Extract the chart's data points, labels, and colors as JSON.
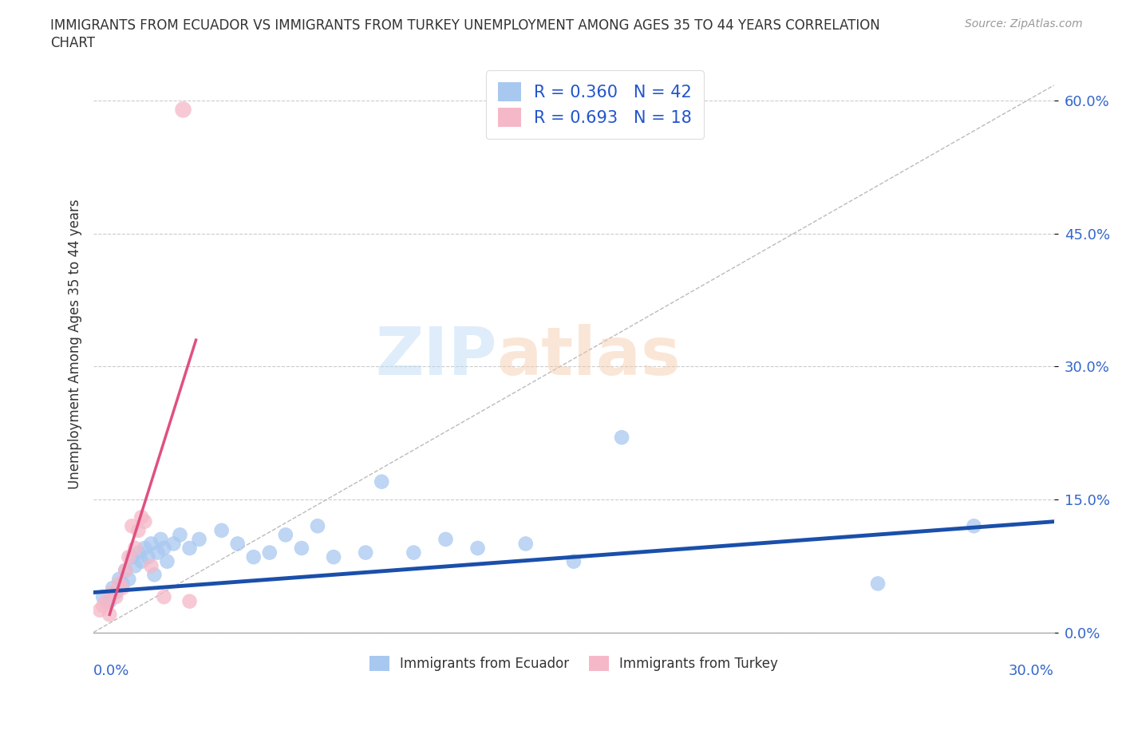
{
  "title_line1": "IMMIGRANTS FROM ECUADOR VS IMMIGRANTS FROM TURKEY UNEMPLOYMENT AMONG AGES 35 TO 44 YEARS CORRELATION",
  "title_line2": "CHART",
  "source": "Source: ZipAtlas.com",
  "ylabel": "Unemployment Among Ages 35 to 44 years",
  "ytick_values": [
    0.0,
    15.0,
    30.0,
    45.0,
    60.0
  ],
  "xmin": 0.0,
  "xmax": 30.0,
  "ymin": 0.0,
  "ymax": 65.0,
  "R_ecuador": 0.36,
  "N_ecuador": 42,
  "R_turkey": 0.693,
  "N_turkey": 18,
  "ecuador_color": "#a8c8f0",
  "turkey_color": "#f5b8c8",
  "ecuador_line_color": "#1a4faa",
  "turkey_line_color": "#e05080",
  "grid_color": "#cccccc",
  "ecuador_x": [
    0.3,
    0.5,
    0.6,
    0.7,
    0.8,
    0.9,
    1.0,
    1.1,
    1.2,
    1.3,
    1.4,
    1.5,
    1.6,
    1.7,
    1.8,
    1.9,
    2.0,
    2.1,
    2.2,
    2.3,
    2.5,
    2.7,
    3.0,
    3.3,
    4.0,
    4.5,
    5.0,
    5.5,
    6.0,
    6.5,
    7.0,
    7.5,
    8.5,
    9.0,
    10.0,
    11.0,
    12.0,
    13.5,
    15.0,
    16.5,
    24.5,
    27.5
  ],
  "ecuador_y": [
    4.0,
    3.5,
    5.0,
    4.5,
    6.0,
    5.5,
    7.0,
    6.0,
    8.5,
    7.5,
    9.0,
    8.0,
    9.5,
    8.5,
    10.0,
    6.5,
    9.0,
    10.5,
    9.5,
    8.0,
    10.0,
    11.0,
    9.5,
    10.5,
    11.5,
    10.0,
    8.5,
    9.0,
    11.0,
    9.5,
    12.0,
    8.5,
    9.0,
    17.0,
    9.0,
    10.5,
    9.5,
    10.0,
    8.0,
    22.0,
    5.5,
    12.0
  ],
  "turkey_x": [
    0.2,
    0.3,
    0.4,
    0.5,
    0.6,
    0.7,
    0.8,
    0.9,
    1.0,
    1.1,
    1.2,
    1.3,
    1.4,
    1.5,
    1.6,
    1.8,
    2.2,
    3.0
  ],
  "turkey_y": [
    2.5,
    3.0,
    3.5,
    2.0,
    4.5,
    4.0,
    5.5,
    5.0,
    7.0,
    8.5,
    12.0,
    9.5,
    11.5,
    13.0,
    12.5,
    7.5,
    4.0,
    3.5
  ],
  "turkey_outlier_x": 2.8,
  "turkey_outlier_y": 59.0,
  "ecu_line_x0": 0.0,
  "ecu_line_y0": 4.5,
  "ecu_line_x1": 30.0,
  "ecu_line_y1": 12.5,
  "tur_line_x0": 0.5,
  "tur_line_y0": 2.0,
  "tur_line_x1": 3.2,
  "tur_line_y1": 33.0
}
